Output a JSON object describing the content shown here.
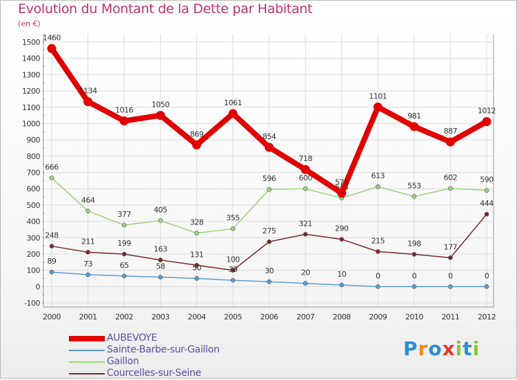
{
  "title": "Evolution du Montant de la Dette par Habitant",
  "subtitle": "(en €)",
  "logo": {
    "letters": [
      "P",
      "r",
      "o",
      "x",
      "i",
      "t",
      "i"
    ],
    "colors": [
      "#2d8fd0",
      "#f28a1c",
      "#2d8fd0",
      "#e8352b",
      "#8bc43f",
      "#2d8fd0",
      "#8bc43f"
    ]
  },
  "chart_data": {
    "type": "line",
    "x": [
      "2000",
      "2001",
      "2002",
      "2003",
      "2004",
      "2005",
      "2006",
      "2007",
      "2008",
      "2009",
      "2010",
      "2011",
      "2012"
    ],
    "ylim": [
      -100,
      1500
    ],
    "yticks": [
      -100,
      0,
      100,
      200,
      300,
      400,
      500,
      600,
      700,
      800,
      900,
      1000,
      1100,
      1200,
      1300,
      1400,
      1500
    ],
    "grid": true,
    "legend_position": "bottom-left",
    "series": [
      {
        "name": "AUBEVOYE",
        "color": "#e00000",
        "values": [
          1460,
          1134,
          1016,
          1050,
          869,
          1061,
          854,
          718,
          573,
          1101,
          981,
          887,
          1012
        ]
      },
      {
        "name": "Sainte-Barbe-sur-Gaillon",
        "color": "#5b9bd5",
        "values": [
          89,
          73,
          65,
          58,
          50,
          39,
          30,
          20,
          10,
          0,
          0,
          0,
          0
        ]
      },
      {
        "name": "Gaillon",
        "color": "#9ad57a",
        "values": [
          666,
          464,
          377,
          405,
          328,
          355,
          596,
          600,
          543,
          613,
          553,
          602,
          590
        ]
      },
      {
        "name": "Courcelles-sur-Seine",
        "color": "#7a2a2a",
        "values": [
          248,
          211,
          199,
          163,
          131,
          100,
          275,
          321,
          290,
          215,
          198,
          177,
          444
        ]
      }
    ]
  }
}
